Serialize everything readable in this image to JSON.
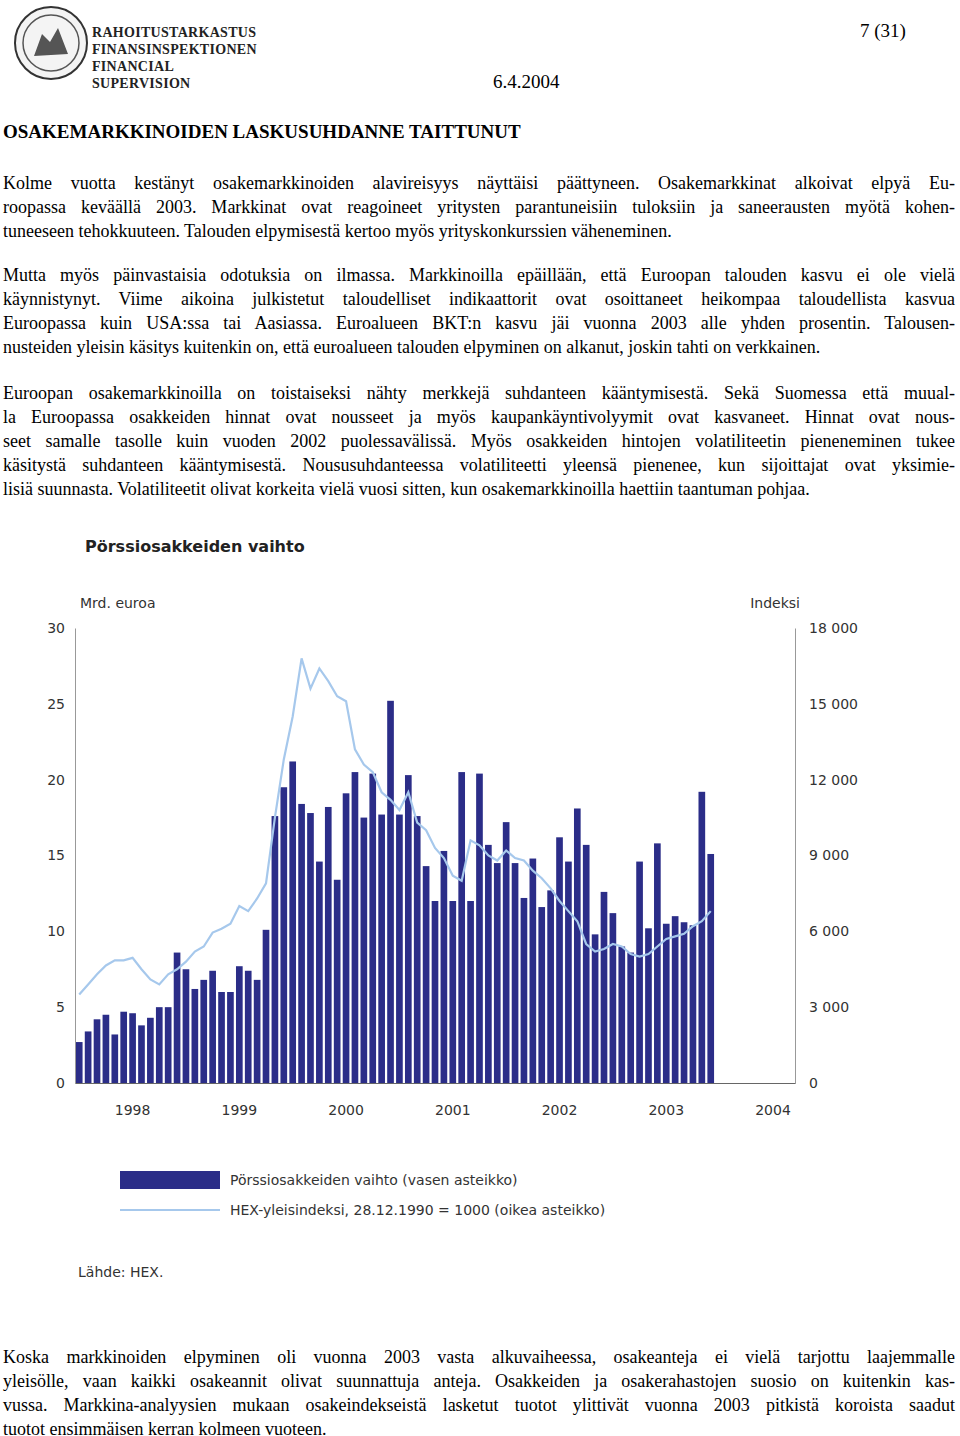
{
  "header": {
    "logo_lines": [
      "RAHOITUSTARKASTUS",
      "FINANSINSPEKTIONEN",
      "FINANCIAL SUPERVISION"
    ],
    "page_number": "7 (31)",
    "date": "6.4.2004"
  },
  "title": "OSAKEMARKKINOIDEN LASKUSUHDANNE TAITTUNUT",
  "text_before": [
    [
      "Kolme vuotta kestänyt osakemarkkinoiden alavireisyys näyttäisi päättyneen. Osakemarkkinat alkoivat elpyä Eu-",
      "roopassa keväällä 2003. Markkinat ovat reagoineet yritysten parantuneisiin tuloksiin ja saneerausten myötä kohen-",
      "tuneeseen tehokkuuteen. Talouden elpymisestä kertoo myös yrityskonkurssien väheneminen."
    ],
    [
      "Mutta myös päinvastaisia odotuksia on ilmassa. Markkinoilla epäillään, että Euroopan talouden kasvu ei ole vielä",
      "käynnistynyt. Viime aikoina julkistetut taloudelliset indikaattorit ovat osoittaneet heikompaa taloudellista kasvua",
      "Euroopassa kuin USA:ssa tai Aasiassa. Euroalueen BKT:n kasvu jäi vuonna 2003 alle yhden prosentin. Talousen-",
      "nusteiden yleisin käsitys kuitenkin on, että euroalueen talouden elpyminen on alkanut, joskin tahti on verkkainen."
    ],
    [
      "Euroopan osakemarkkinoilla on toistaiseksi nähty merkkejä suhdanteen kääntymisestä. Sekä Suomessa että muual-",
      "la Euroopassa osakkeiden hinnat ovat nousseet ja myös kaupankäyntivolyymit ovat kasvaneet. Hinnat ovat nous-",
      "seet samalle tasolle kuin vuoden 2002 puolessavälissä. Myös osakkeiden hintojen volatiliteetin pieneneminen tukee",
      "käsitystä suhdanteen kääntymisestä. Noususuhdanteessa volatiliteetti yleensä pienenee, kun sijoittajat ovat yksimie-",
      "lisiä suunnasta. Volatiliteetit olivat korkeita vielä vuosi sitten, kun osakemarkkinoilla haettiin taantuman pohjaa."
    ]
  ],
  "chart_data": {
    "type": "bar",
    "title": "Pörssiosakkeiden vaihto",
    "y_label": "Mrd. euroa",
    "y2_label": "Indeksi",
    "source": "Lähde: HEX.",
    "categories": [
      null,
      null,
      null,
      null,
      null,
      null,
      "1998",
      null,
      null,
      null,
      null,
      null,
      null,
      null,
      null,
      null,
      null,
      null,
      "1999",
      null,
      null,
      null,
      null,
      null,
      null,
      null,
      null,
      null,
      null,
      null,
      "2000",
      null,
      null,
      null,
      null,
      null,
      null,
      null,
      null,
      null,
      null,
      null,
      "2001",
      null,
      null,
      null,
      null,
      null,
      null,
      null,
      null,
      null,
      null,
      null,
      "2002",
      null,
      null,
      null,
      null,
      null,
      null,
      null,
      null,
      null,
      null,
      null,
      "2003",
      null,
      null,
      null,
      null,
      null,
      null,
      null,
      null,
      null,
      null,
      null,
      "2004",
      null,
      null
    ],
    "series": [
      {
        "name": "Pörssiosakkeiden vaihto (vasen asteikko)",
        "type": "bar",
        "color": "#2b2d88",
        "values": [
          2.7,
          3.4,
          4.2,
          4.5,
          3.2,
          4.7,
          4.6,
          3.8,
          4.3,
          5.0,
          5.0,
          8.6,
          7.5,
          6.2,
          6.8,
          7.4,
          6.0,
          6.0,
          7.7,
          7.4,
          6.8,
          10.1,
          17.6,
          19.5,
          21.2,
          18.4,
          17.8,
          14.6,
          18.2,
          13.4,
          19.1,
          20.5,
          17.5,
          20.4,
          17.7,
          25.2,
          17.7,
          20.3,
          17.6,
          14.3,
          12.0,
          15.3,
          12.0,
          20.5,
          12.0,
          20.4,
          15.7,
          14.5,
          17.2,
          14.5,
          12.2,
          14.8,
          11.6,
          12.7,
          16.2,
          14.6,
          18.1,
          15.7,
          9.8,
          12.6,
          11.2,
          9.0,
          8.6,
          14.6,
          10.2,
          15.8,
          10.5,
          11.0,
          10.6,
          10.4,
          19.2,
          15.1,
          null,
          null,
          null,
          null,
          null,
          null,
          null,
          null,
          null
        ]
      },
      {
        "name": "HEX-yleisindeksi, 28.12.1990 = 1000 (oikea asteikko)",
        "type": "line",
        "color": "#a6c8ec",
        "axis": "y2",
        "values": [
          3500,
          3900,
          4300,
          4650,
          4850,
          4850,
          4950,
          4500,
          4100,
          3900,
          4300,
          4500,
          4800,
          5200,
          5400,
          5950,
          6100,
          6300,
          7000,
          6800,
          7300,
          7900,
          10500,
          12800,
          14500,
          16800,
          15600,
          16400,
          15900,
          15300,
          15100,
          13200,
          12600,
          12300,
          11500,
          11200,
          10800,
          11500,
          10300,
          10000,
          9300,
          8900,
          8200,
          8000,
          9600,
          9400,
          9000,
          8800,
          9200,
          8900,
          8800,
          8400,
          8100,
          7700,
          7200,
          6800,
          6400,
          5500,
          5200,
          5300,
          5500,
          5400,
          5100,
          5000,
          5100,
          5400,
          5700,
          5800,
          5900,
          6200,
          6400,
          6800,
          null,
          null,
          null,
          null,
          null,
          null,
          null,
          null,
          null
        ]
      }
    ],
    "ylim": [
      0,
      30
    ],
    "yticks": [
      0,
      5,
      10,
      15,
      20,
      25,
      30
    ],
    "y2lim": [
      0,
      18000
    ],
    "y2ticks": [
      0,
      {
        "value": 3000,
        "label": "3 000"
      },
      {
        "value": 6000,
        "label": "6 000"
      },
      {
        "value": 9000,
        "label": "9 000"
      },
      {
        "value": 12000,
        "label": "12 000"
      },
      {
        "value": 15000,
        "label": "15 000"
      },
      {
        "value": 18000,
        "label": "18 000"
      }
    ],
    "grid": false,
    "legend": "bottom"
  },
  "text_after": [
    [
      "Koska markkinoiden elpyminen oli vuonna 2003 vasta alkuvaiheessa, osakeanteja ei vielä tarjottu laajemmalle",
      "yleisölle, vaan kaikki osakeannit olivat suunnattuja anteja. Osakkeiden ja osakerahastojen suosio on kuitenkin kas-",
      "vussa. Markkina-analyysien mukaan osakeindekseistä lasketut tuotot ylittivät vuonna 2003 pitkistä koroista saadut",
      "tuotot ensimmäisen kerran kolmeen vuoteen."
    ]
  ]
}
